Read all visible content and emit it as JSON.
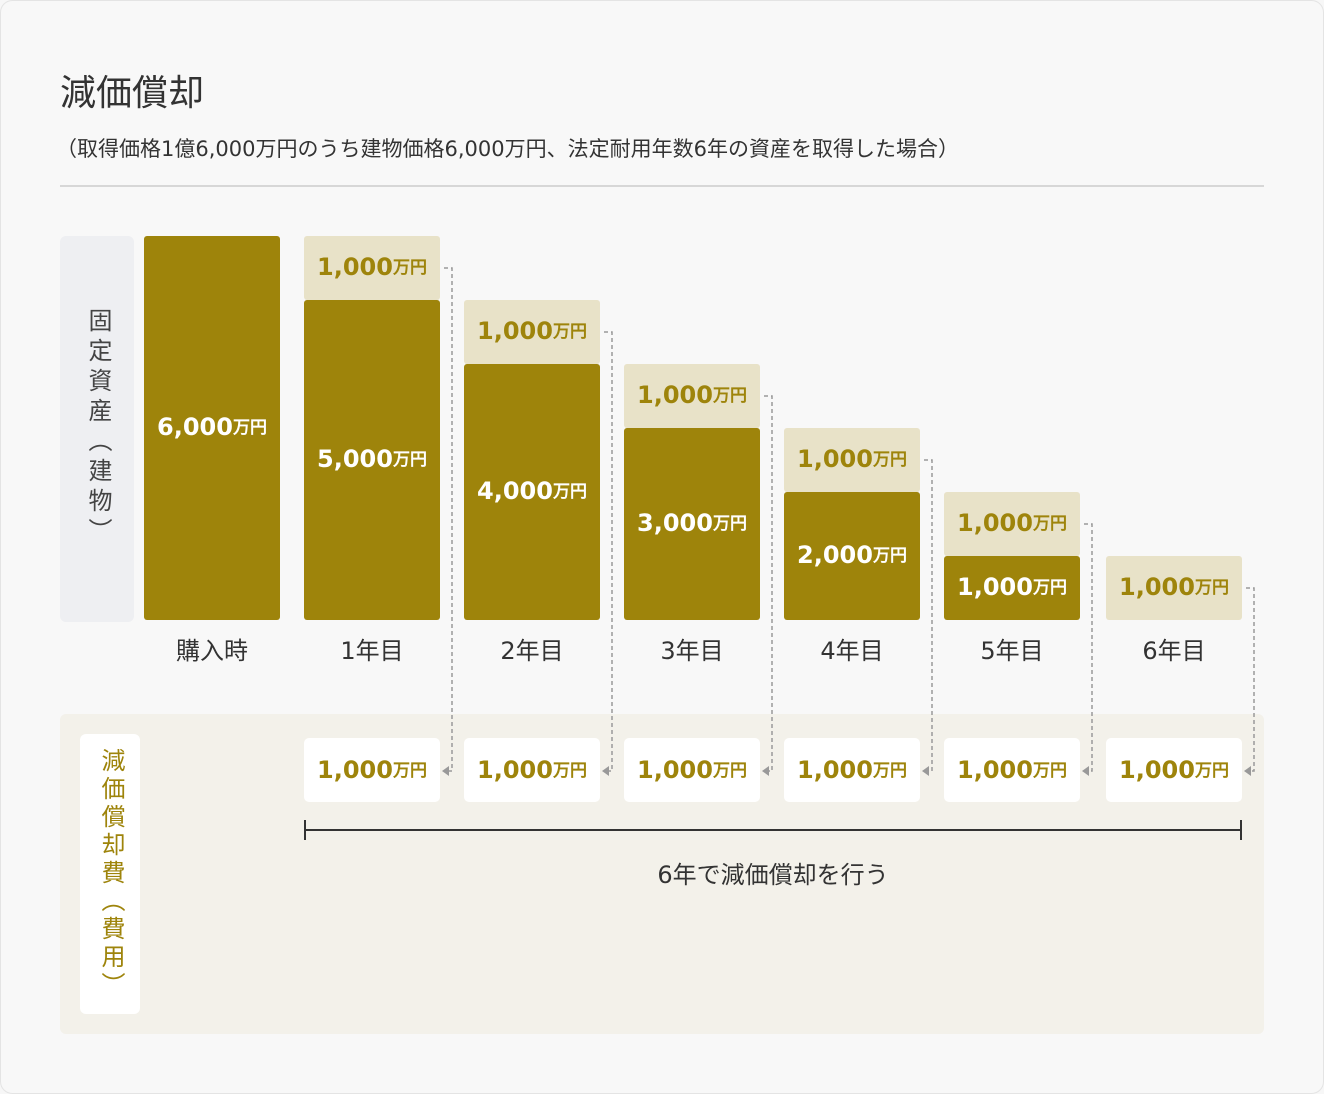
{
  "chart_data": {
    "type": "bar",
    "stacked": true,
    "title": "減価償却",
    "subtitle": "（取得価格1億6,000万円のうち建物価格6,000万円、法定耐用年数6年の資産を取得した場合）",
    "y_axis_label": "固定資産（建物）",
    "unit": "万円",
    "categories": [
      "購入時",
      "1年目",
      "2年目",
      "3年目",
      "4年目",
      "5年目",
      "6年目"
    ],
    "ylim": [
      0,
      6000
    ],
    "series": [
      {
        "color": "#9e840b",
        "label_color": "#ffffff",
        "values": [
          6000,
          5000,
          4000,
          3000,
          2000,
          1000,
          0
        ],
        "value_labels": [
          "6,000",
          "5,000",
          "4,000",
          "3,000",
          "2,000",
          "1,000",
          null
        ]
      },
      {
        "color": "#e8e2c8",
        "label_color": "#9e840b",
        "values": [
          null,
          1000,
          1000,
          1000,
          1000,
          1000,
          1000
        ],
        "value_labels": [
          null,
          "1,000",
          "1,000",
          "1,000",
          "1,000",
          "1,000",
          "1,000"
        ]
      }
    ],
    "expense_label": "減価償却費（費用）",
    "expenses": {
      "values": [
        null,
        1000,
        1000,
        1000,
        1000,
        1000,
        1000
      ],
      "value_labels": [
        null,
        "1,000",
        "1,000",
        "1,000",
        "1,000",
        "1,000",
        "1,000"
      ]
    },
    "period_note": "6年で減価償却を行う"
  }
}
